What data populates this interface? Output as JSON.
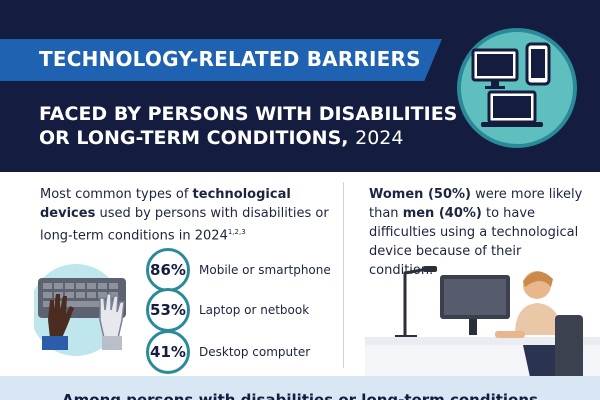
{
  "header": {
    "banner": "TECHNOLOGY-RELATED BARRIERS",
    "subtitle_line1": "FACED BY PERSONS WITH DISABILITIES",
    "subtitle_line2": "OR LONG-TERM CONDITIONS,",
    "year": "2024"
  },
  "left": {
    "intro_pre": "Most common types of ",
    "intro_bold": "technological devices",
    "intro_post": " used by persons with disabilities or long-term conditions in 2024",
    "intro_sup": "1,2,3",
    "stats": [
      {
        "value": "86%",
        "label": "Mobile or smartphone"
      },
      {
        "value": "53%",
        "label": "Laptop or netbook"
      },
      {
        "value": "41%",
        "label": "Desktop computer"
      }
    ]
  },
  "right": {
    "women": "Women (50%)",
    "mid": " were more likely than ",
    "men": "men (40%)",
    "post": " to have difficulties using a technological device because of their condition."
  },
  "bottom": {
    "text": "Among persons with disabilities or long-term conditions"
  },
  "colors": {
    "navy": "#141c3f",
    "banner_blue": "#1f62b1",
    "teal": "#2a8a9a",
    "light_teal": "#5fbfbf",
    "light_blue": "#d9e7f5"
  },
  "icons": [
    "desktop-monitor-icon",
    "smartphone-icon",
    "laptop-icon",
    "hands-keyboard-illustration",
    "person-at-desk-illustration"
  ]
}
